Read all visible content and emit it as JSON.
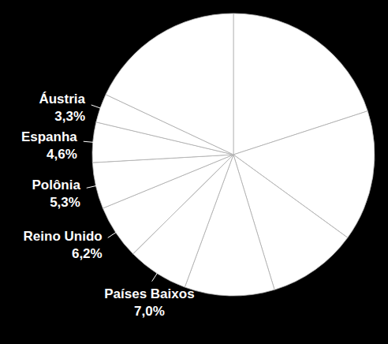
{
  "chart_data": {
    "type": "pie",
    "categories": [
      null,
      null,
      null,
      null,
      "Países Baixos",
      "Reino Unido",
      "Polônia",
      "Espanha",
      "Áustria",
      null
    ],
    "values": [
      20,
      15,
      10.3,
      10.3,
      7.0,
      6.2,
      5.3,
      4.6,
      3.3,
      18
    ],
    "value_labels": [
      null,
      null,
      null,
      null,
      "7,0%",
      "6,2%",
      "5,3%",
      "4,6%",
      "3,3%",
      null
    ],
    "color": "#ffffff",
    "data_labels": true
  }
}
